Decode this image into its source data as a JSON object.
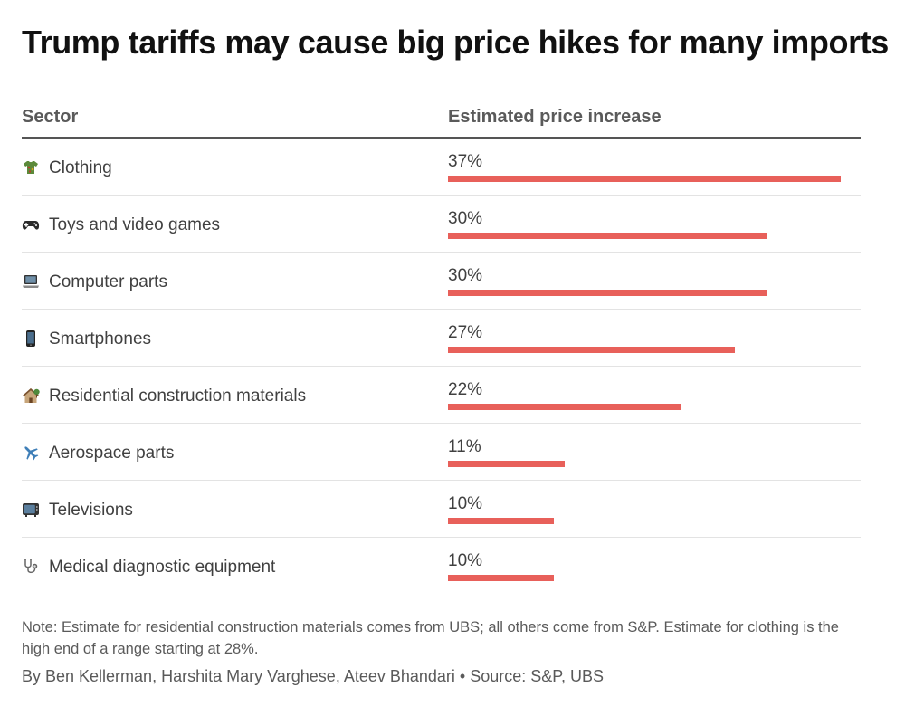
{
  "title": "Trump tariffs may cause big price hikes for many imports",
  "chart_data": {
    "type": "bar",
    "orientation": "horizontal",
    "title": "Trump tariffs may cause big price hikes for many imports",
    "xlabel": "Estimated price increase",
    "ylabel": "Sector",
    "xlim": [
      0,
      37
    ],
    "value_suffix": "%",
    "bar_color": "#e8605a",
    "categories": [
      "Clothing",
      "Toys and video games",
      "Computer parts",
      "Smartphones",
      "Residential construction materials",
      "Aerospace parts",
      "Televisions",
      "Medical diagnostic equipment"
    ],
    "icons": [
      "clothing-icon",
      "gamepad-icon",
      "laptop-icon",
      "smartphone-icon",
      "house-icon",
      "airplane-icon",
      "television-icon",
      "stethoscope-icon"
    ],
    "values": [
      37,
      30,
      30,
      27,
      22,
      11,
      10,
      10
    ],
    "value_labels": [
      "37%",
      "30%",
      "30%",
      "27%",
      "22%",
      "11%",
      "10%",
      "10%"
    ]
  },
  "header": {
    "sector": "Sector",
    "value": "Estimated price increase"
  },
  "note": "Note: Estimate for residential construction materials comes from UBS; all others come from S&P. Estimate for clothing is the high end of a range starting at 28%.",
  "byline": "By Ben Kellerman, Harshita Mary Varghese, Ateev Bhandari • Source: S&P, UBS"
}
